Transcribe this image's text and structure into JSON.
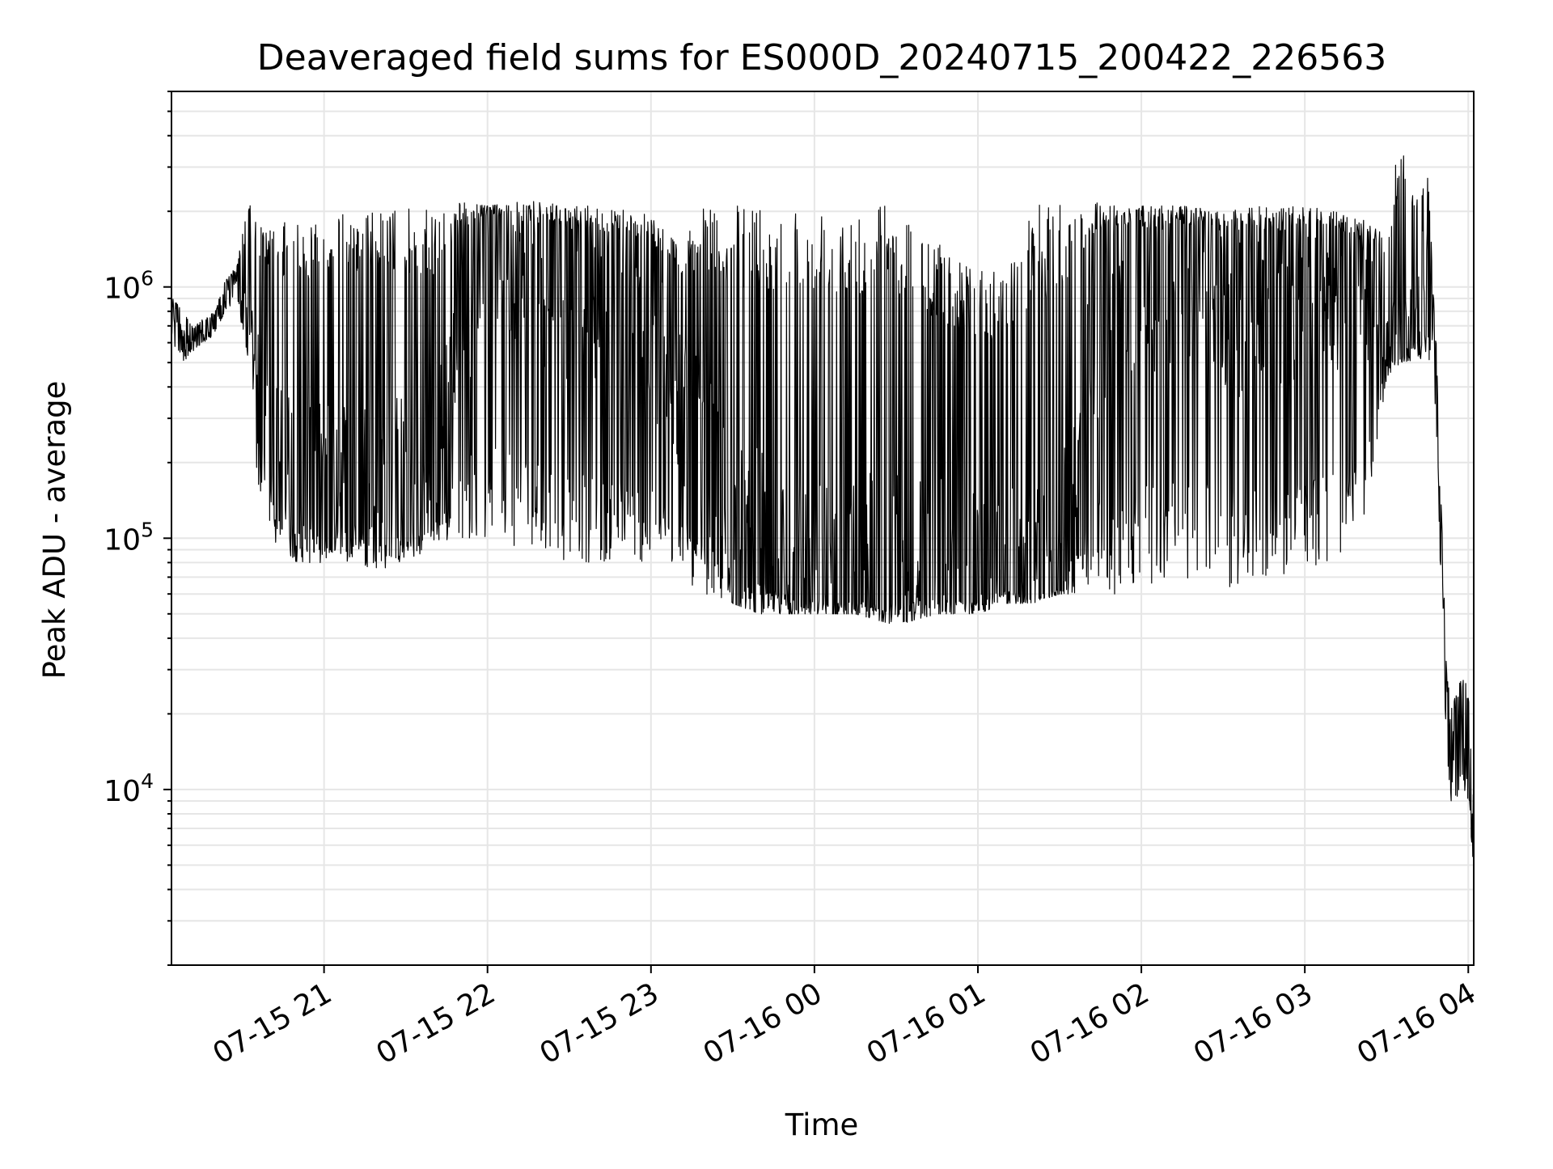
{
  "chart_data": {
    "type": "line",
    "title": "Deaveraged field sums for ES000D_20240715_200422_226563",
    "xlabel": "Time",
    "ylabel": "Peak ADU - average",
    "yscale": "log",
    "ylim": [
      2000,
      6000000
    ],
    "xlim": [
      "07-15 20:04",
      "07-16 04:02"
    ],
    "grid": true,
    "color": "#000000",
    "x_ticks": [
      "07-15 21",
      "07-15 22",
      "07-15 23",
      "07-16 00",
      "07-16 01",
      "07-16 02",
      "07-16 03",
      "07-16 04"
    ],
    "y_ticks": [
      {
        "base": "10",
        "exp": "4",
        "value": 10000
      },
      {
        "base": "10",
        "exp": "5",
        "value": 100000
      },
      {
        "base": "10",
        "exp": "6",
        "value": 1000000
      }
    ],
    "series": [
      {
        "x": [
          "07-15 20:04",
          "07-15 20:08",
          "07-15 20:12",
          "07-15 20:16",
          "07-15 20:20",
          "07-15 20:24",
          "07-15 20:28",
          "07-15 20:32",
          "07-15 20:36",
          "07-15 20:40",
          "07-15 20:45",
          "07-15 20:50",
          "07-15 20:55",
          "07-15 21:00",
          "07-15 21:10",
          "07-15 21:20",
          "07-15 21:30",
          "07-15 21:40",
          "07-15 21:50",
          "07-15 22:00",
          "07-15 22:15",
          "07-15 22:30",
          "07-15 22:45",
          "07-15 23:00",
          "07-15 23:10",
          "07-15 23:20",
          "07-15 23:30",
          "07-15 23:40",
          "07-15 23:50",
          "07-16 00:00",
          "07-16 00:15",
          "07-16 00:30",
          "07-16 00:45",
          "07-16 01:00",
          "07-16 01:10",
          "07-16 01:20",
          "07-16 01:30",
          "07-16 01:45",
          "07-16 02:00",
          "07-16 02:15",
          "07-16 02:30",
          "07-16 02:45",
          "07-16 03:00",
          "07-16 03:10",
          "07-16 03:20",
          "07-16 03:30",
          "07-16 03:35",
          "07-16 03:40",
          "07-16 03:45",
          "07-16 03:48",
          "07-16 03:50",
          "07-16 03:52",
          "07-16 03:54",
          "07-16 03:56",
          "07-16 03:58",
          "07-16 04:00",
          "07-16 04:02"
        ],
        "y": [
          800000,
          700000,
          600000,
          650000,
          700000,
          950000,
          1100000,
          700000,
          450000,
          300000,
          180000,
          200000,
          150000,
          170000,
          200000,
          150000,
          180000,
          160000,
          700000,
          1500000,
          1200000,
          900000,
          800000,
          600000,
          400000,
          200000,
          100000,
          90000,
          80000,
          75000,
          70000,
          80000,
          75000,
          70000,
          80000,
          65000,
          70000,
          800000,
          1000000,
          1100000,
          900000,
          800000,
          900000,
          1000000,
          800000,
          700000,
          600000,
          900000,
          1500000,
          400000,
          100000,
          25000,
          13000,
          15000,
          20000,
          15000,
          5000
        ],
        "y_high": [
          950000,
          800000,
          700000,
          750000,
          800000,
          1100000,
          1200000,
          2200000,
          1800000,
          1700000,
          1800000,
          1900000,
          1900000,
          1900000,
          2000000,
          2000000,
          2100000,
          2000000,
          2200000,
          2100000,
          2200000,
          2100000,
          2100000,
          2000000,
          1500000,
          2100000,
          2100000,
          2200000,
          2100000,
          2100000,
          2200000,
          2200000,
          1500000,
          1300000,
          1100000,
          2100000,
          2200000,
          2200000,
          2100000,
          2100000,
          2000000,
          2100000,
          2100000,
          2000000,
          1900000,
          1600000,
          4300000,
          2200000,
          3000000,
          700000,
          150000,
          30000,
          22000,
          25000,
          30000,
          25000,
          9000
        ],
        "y_low": [
          600000,
          500000,
          550000,
          600000,
          650000,
          800000,
          900000,
          500000,
          150000,
          100000,
          90000,
          80000,
          80000,
          80000,
          80000,
          75000,
          80000,
          90000,
          100000,
          100000,
          90000,
          80000,
          80000,
          80000,
          70000,
          60000,
          55000,
          50000,
          50000,
          50000,
          50000,
          45000,
          50000,
          50000,
          55000,
          55000,
          60000,
          60000,
          60000,
          70000,
          60000,
          70000,
          70000,
          80000,
          90000,
          400000,
          500000,
          500000,
          500000,
          300000,
          60000,
          15000,
          7000,
          8000,
          10000,
          9000,
          4500
        ]
      }
    ]
  }
}
